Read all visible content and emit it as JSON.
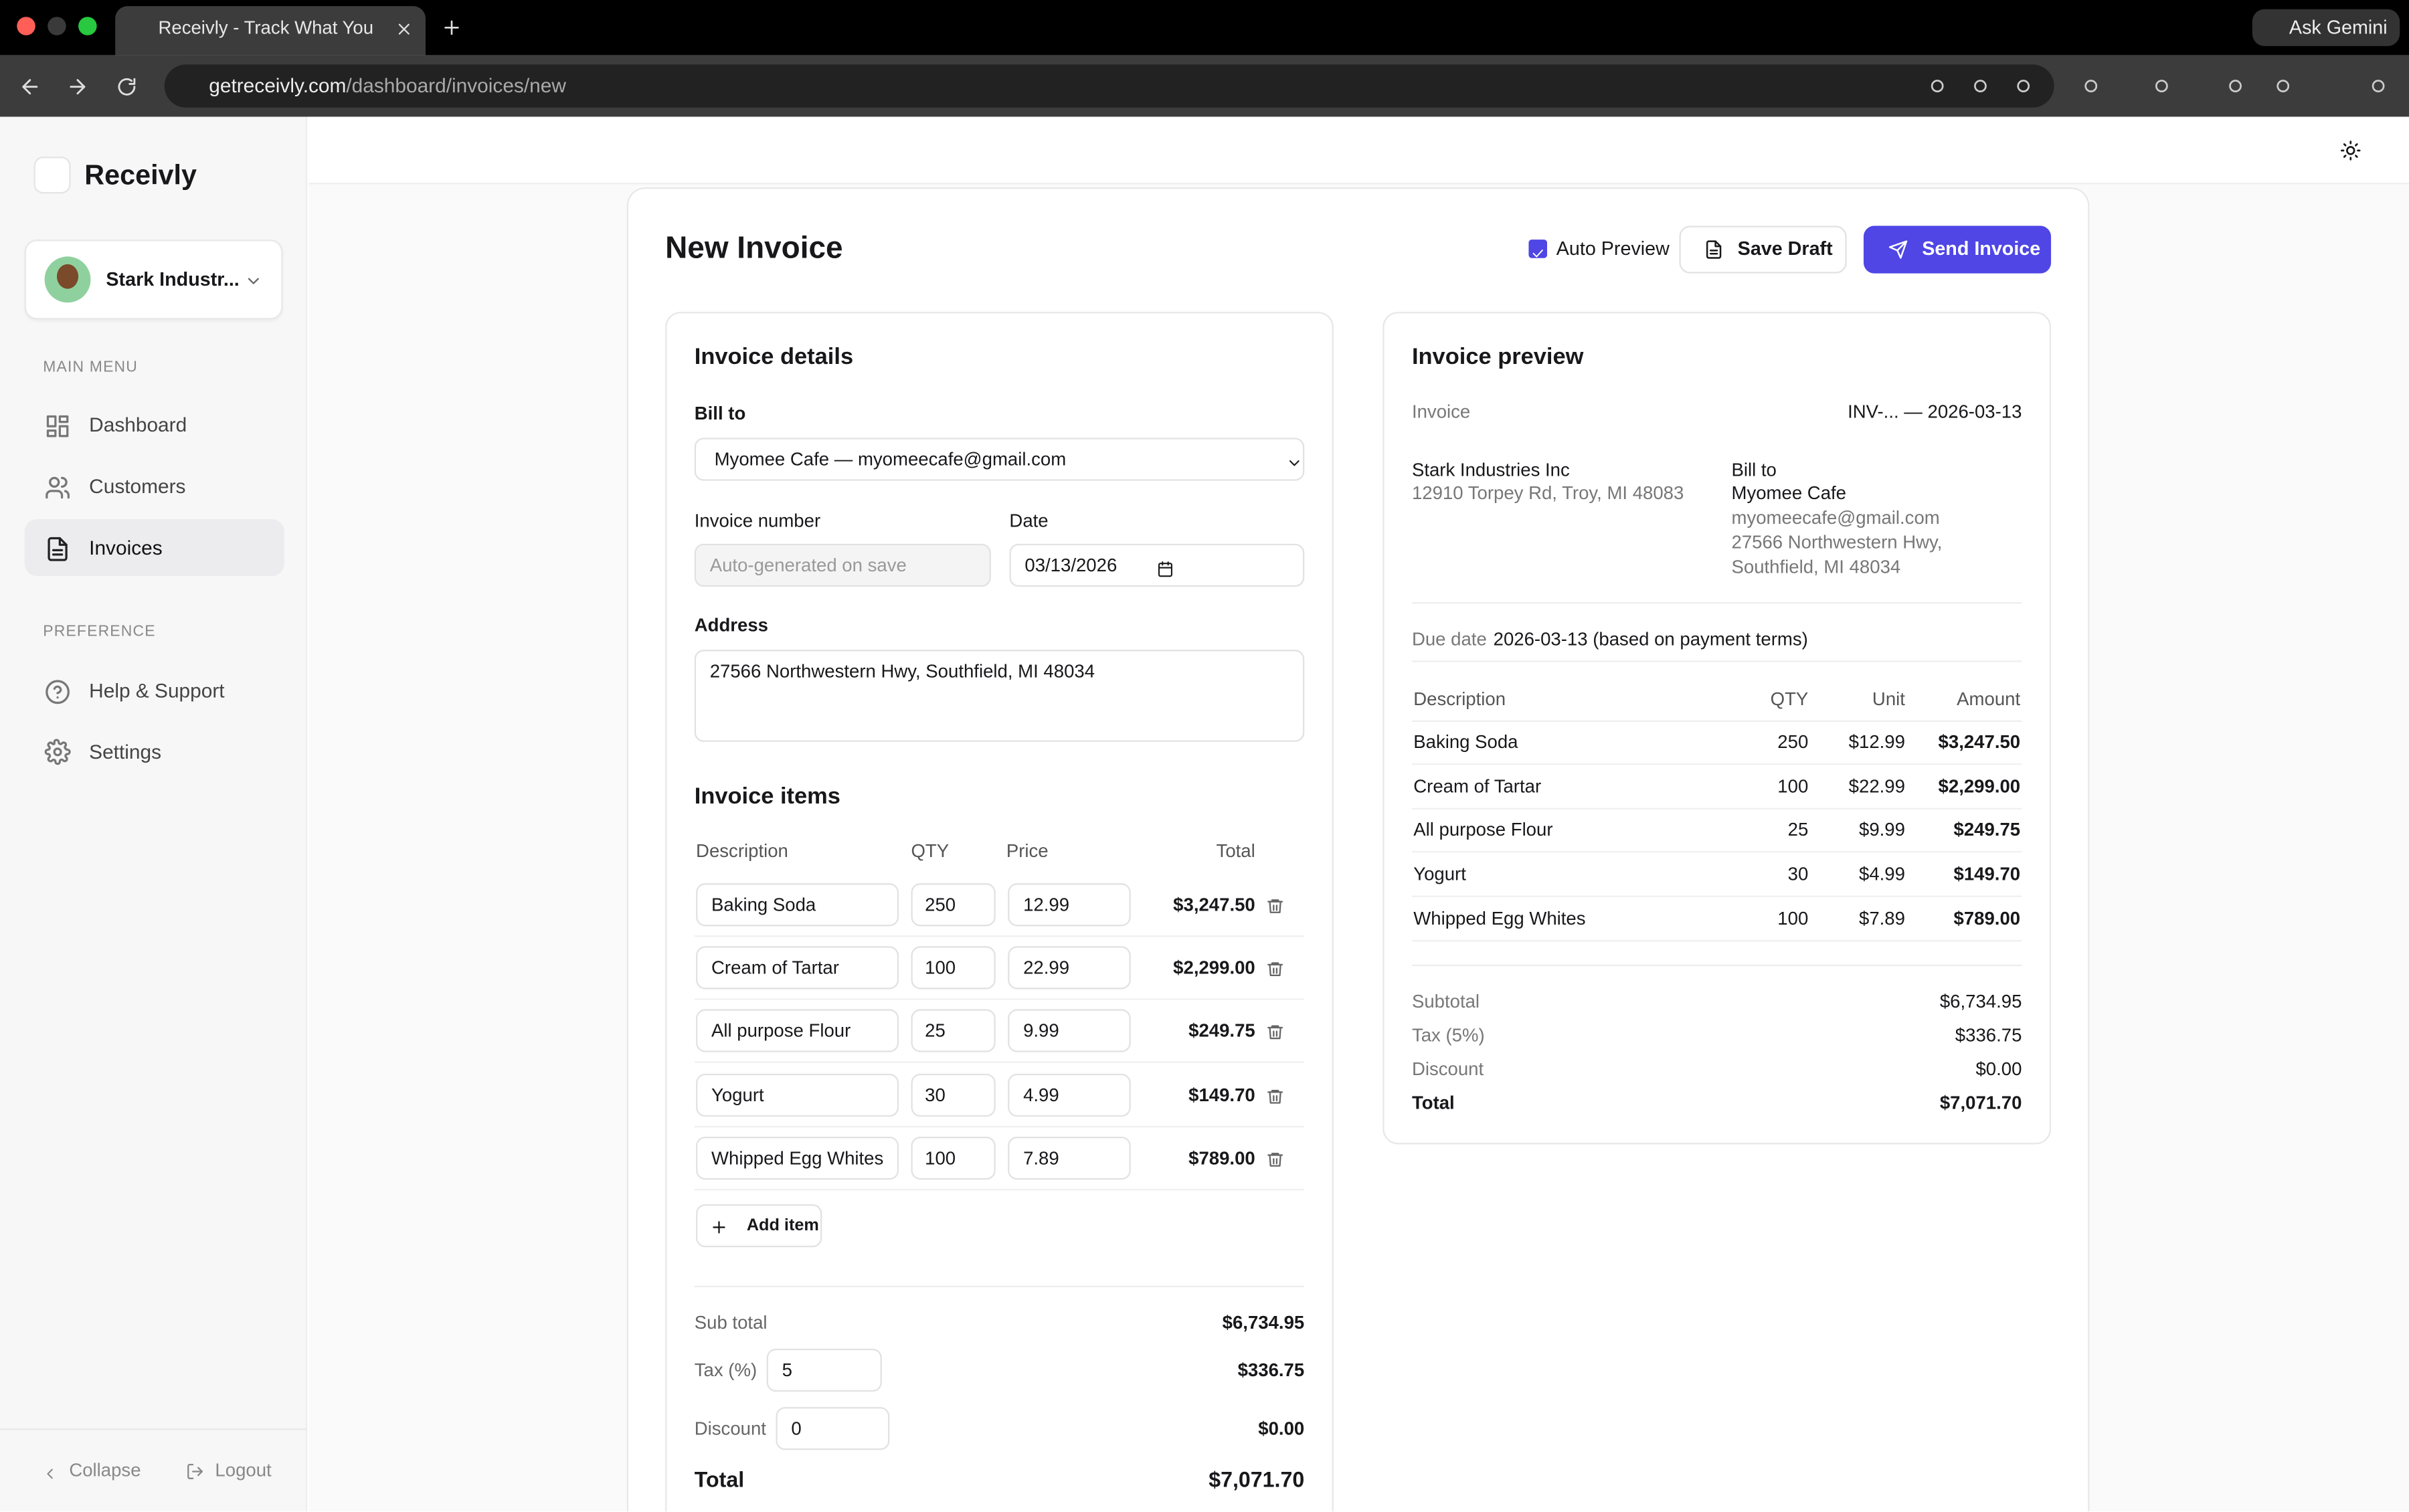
{
  "browser": {
    "tab_title": "Receivly - Track What You're",
    "url_host": "getreceivly.com",
    "url_path": "/dashboard/invoices/new",
    "gemini": "Ask Gemini"
  },
  "sidebar": {
    "brand": "Receivly",
    "company": "Stark Industr...",
    "main_menu": "MAIN MENU",
    "menu": [
      "Dashboard",
      "Customers",
      "Invoices"
    ],
    "preference": "PREFERENCE",
    "pref_menu": [
      "Help & Support",
      "Settings"
    ],
    "collapse": "Collapse",
    "logout": "Logout"
  },
  "page": {
    "title": "New Invoice",
    "auto_preview": "Auto Preview",
    "save_draft": "Save Draft",
    "send": "Send Invoice"
  },
  "form": {
    "title": "Invoice details",
    "bill_to_label": "Bill to",
    "bill_to": "Myomee Cafe — myomeecafe@gmail.com",
    "invoice_number_label": "Invoice number",
    "invoice_number_placeholder": "Auto-generated on save",
    "date_label": "Date",
    "date": "03/13/2026",
    "address_label": "Address",
    "address": "27566 Northwestern Hwy, Southfield, MI 48034",
    "items_title": "Invoice items",
    "columns": [
      "Description",
      "QTY",
      "Price",
      "Total"
    ],
    "items": [
      [
        "Baking Soda",
        "250",
        "12.99",
        "$3,247.50"
      ],
      [
        "Cream of Tartar",
        "100",
        "22.99",
        "$2,299.00"
      ],
      [
        "All purpose Flour",
        "25",
        "9.99",
        "$249.75"
      ],
      [
        "Yogurt",
        "30",
        "4.99",
        "$149.70"
      ],
      [
        "Whipped Egg Whites",
        "100",
        "7.89",
        "$789.00"
      ]
    ],
    "add_item": "Add item",
    "subtotal_label": "Sub total",
    "subtotal": "$6,734.95",
    "tax_label": "Tax (%)",
    "tax_input": "5",
    "tax": "$336.75",
    "discount_label": "Discount",
    "discount_input": "0",
    "discount": "$0.00",
    "total_label": "Total",
    "total": "$7,071.70"
  },
  "preview": {
    "title": "Invoice preview",
    "invoice_label": "Invoice",
    "invoice_value": "INV-... — 2026-03-13",
    "from_name": "Stark Industries Inc",
    "from_address": "12910 Torpey Rd, Troy, MI 48083",
    "bill_to_label": "Bill to",
    "bill_to_name": "Myomee Cafe",
    "bill_to_email": "myomeecafe@gmail.com",
    "bill_to_address": [
      "27566 Northwestern Hwy,",
      "Southfield, MI 48034"
    ],
    "due_label": "Due date",
    "due_value": "2026-03-13 (based on payment terms)",
    "columns": [
      "Description",
      "QTY",
      "Unit",
      "Amount"
    ],
    "items": [
      [
        "Baking Soda",
        "250",
        "$12.99",
        "$3,247.50"
      ],
      [
        "Cream of Tartar",
        "100",
        "$22.99",
        "$2,299.00"
      ],
      [
        "All purpose Flour",
        "25",
        "$9.99",
        "$249.75"
      ],
      [
        "Yogurt",
        "30",
        "$4.99",
        "$149.70"
      ],
      [
        "Whipped Egg Whites",
        "100",
        "$7.89",
        "$789.00"
      ]
    ],
    "totals": [
      [
        "Subtotal",
        "$6,734.95"
      ],
      [
        "Tax (5%)",
        "$336.75"
      ],
      [
        "Discount",
        "$0.00"
      ],
      [
        "Total",
        "$7,071.70"
      ]
    ]
  }
}
